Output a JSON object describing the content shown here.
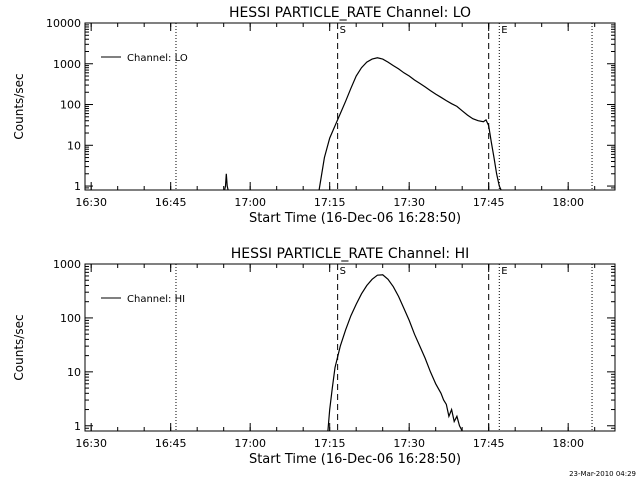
{
  "colors": {
    "background": "#ffffff",
    "foreground": "#000000"
  },
  "footer": {
    "timestamp": "23-Mar-2010 04:29"
  },
  "chart_data": [
    {
      "type": "line",
      "title": "HESSI PARTICLE_RATE Channel: LO",
      "ylabel": "Counts/sec",
      "xlabel": "Start Time (16-Dec-06 16:28:50)",
      "yscale": "log",
      "ylim": [
        0.8,
        10000
      ],
      "xlim": [
        "16:28:50",
        "18:08:50"
      ],
      "x_ticks": [
        "16:30",
        "16:45",
        "17:00",
        "17:15",
        "17:30",
        "17:45",
        "18:00"
      ],
      "y_ticks": [
        {
          "value": 1,
          "label": "1"
        },
        {
          "value": 10,
          "label": "10"
        },
        {
          "value": 100,
          "label": "100"
        },
        {
          "value": 1000,
          "label": "1000"
        },
        {
          "value": 10000,
          "label": "10000"
        }
      ],
      "legend": {
        "placement": "top-left",
        "entries": [
          "Channel: LO"
        ]
      },
      "markers": [
        {
          "time": "17:16:30",
          "label": "S",
          "style": "dashed"
        },
        {
          "time": "17:45:00",
          "label": "",
          "style": "dashed"
        },
        {
          "time": "17:47:00",
          "label": "E",
          "style": "dotted"
        }
      ],
      "dotted_lines": [
        "16:46:00",
        "18:04:30"
      ],
      "series": [
        {
          "name": "Channel: LO",
          "segments": [
            [
              [
                "16:55:10",
                0.8
              ],
              [
                "16:55:20",
                1.0
              ],
              [
                "16:55:30",
                2.0
              ],
              [
                "16:55:40",
                1.0
              ],
              [
                "16:55:50",
                0.8
              ]
            ],
            [
              [
                "17:13:00",
                0.8
              ],
              [
                "17:14:00",
                5
              ],
              [
                "17:15:00",
                15
              ],
              [
                "17:16:00",
                30
              ],
              [
                "17:17:00",
                60
              ],
              [
                "17:18:00",
                120
              ],
              [
                "17:19:00",
                250
              ],
              [
                "17:20:00",
                500
              ],
              [
                "17:21:00",
                800
              ],
              [
                "17:22:00",
                1100
              ],
              [
                "17:23:00",
                1300
              ],
              [
                "17:24:00",
                1400
              ],
              [
                "17:25:00",
                1300
              ],
              [
                "17:26:00",
                1100
              ],
              [
                "17:27:00",
                900
              ],
              [
                "17:28:00",
                750
              ],
              [
                "17:29:00",
                600
              ],
              [
                "17:30:00",
                500
              ],
              [
                "17:31:00",
                400
              ],
              [
                "17:32:00",
                330
              ],
              [
                "17:33:00",
                270
              ],
              [
                "17:34:00",
                220
              ],
              [
                "17:35:00",
                180
              ],
              [
                "17:36:00",
                150
              ],
              [
                "17:37:00",
                125
              ],
              [
                "17:38:00",
                105
              ],
              [
                "17:39:00",
                90
              ],
              [
                "17:40:00",
                70
              ],
              [
                "17:41:00",
                55
              ],
              [
                "17:42:00",
                45
              ],
              [
                "17:43:00",
                40
              ],
              [
                "17:44:00",
                38
              ],
              [
                "17:44:30",
                42
              ],
              [
                "17:45:00",
                30
              ],
              [
                "17:45:30",
                12
              ],
              [
                "17:46:00",
                5
              ],
              [
                "17:46:30",
                2
              ],
              [
                "17:47:00",
                1
              ],
              [
                "17:47:20",
                0.8
              ]
            ]
          ]
        }
      ]
    },
    {
      "type": "line",
      "title": "HESSI PARTICLE_RATE Channel: HI",
      "ylabel": "Counts/sec",
      "xlabel": "Start Time (16-Dec-06 16:28:50)",
      "yscale": "log",
      "ylim": [
        0.8,
        1000
      ],
      "xlim": [
        "16:28:50",
        "18:08:50"
      ],
      "x_ticks": [
        "16:30",
        "16:45",
        "17:00",
        "17:15",
        "17:30",
        "17:45",
        "18:00"
      ],
      "y_ticks": [
        {
          "value": 1,
          "label": "1"
        },
        {
          "value": 10,
          "label": "10"
        },
        {
          "value": 100,
          "label": "100"
        },
        {
          "value": 1000,
          "label": "1000"
        }
      ],
      "legend": {
        "placement": "top-left",
        "entries": [
          "Channel: HI"
        ]
      },
      "markers": [
        {
          "time": "17:16:30",
          "label": "S",
          "style": "dashed"
        },
        {
          "time": "17:45:00",
          "label": "",
          "style": "dashed"
        },
        {
          "time": "17:47:00",
          "label": "E",
          "style": "dotted"
        }
      ],
      "dotted_lines": [
        "16:46:00",
        "18:04:30"
      ],
      "series": [
        {
          "name": "Channel: HI",
          "segments": [
            [
              [
                "17:14:40",
                0.8
              ],
              [
                "17:15:00",
                2
              ],
              [
                "17:15:30",
                5
              ],
              [
                "17:16:00",
                12
              ],
              [
                "17:17:00",
                30
              ],
              [
                "17:18:00",
                60
              ],
              [
                "17:19:00",
                110
              ],
              [
                "17:20:00",
                180
              ],
              [
                "17:21:00",
                280
              ],
              [
                "17:22:00",
                400
              ],
              [
                "17:23:00",
                520
              ],
              [
                "17:24:00",
                620
              ],
              [
                "17:25:00",
                630
              ],
              [
                "17:26:00",
                520
              ],
              [
                "17:27:00",
                380
              ],
              [
                "17:28:00",
                250
              ],
              [
                "17:29:00",
                150
              ],
              [
                "17:30:00",
                90
              ],
              [
                "17:31:00",
                50
              ],
              [
                "17:32:00",
                30
              ],
              [
                "17:33:00",
                18
              ],
              [
                "17:34:00",
                10
              ],
              [
                "17:35:00",
                6
              ],
              [
                "17:36:00",
                4
              ],
              [
                "17:36:30",
                3
              ],
              [
                "17:37:00",
                2.5
              ],
              [
                "17:37:30",
                1.5
              ],
              [
                "17:38:00",
                2
              ],
              [
                "17:38:30",
                1.2
              ],
              [
                "17:39:00",
                1.5
              ],
              [
                "17:39:30",
                1
              ],
              [
                "17:40:00",
                0.8
              ]
            ]
          ]
        }
      ]
    }
  ]
}
